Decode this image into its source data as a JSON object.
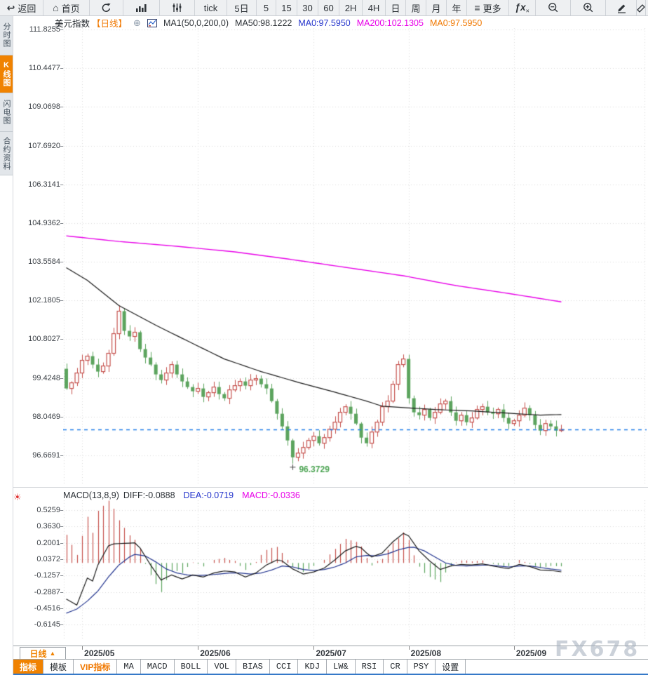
{
  "toolbar": {
    "items": [
      {
        "name": "back",
        "icon": "back-arrow-icon",
        "label": "返回",
        "w": 62
      },
      {
        "name": "home",
        "icon": "home-icon",
        "label": "首页",
        "w": 66
      },
      {
        "name": "refresh",
        "icon": "refresh-icon",
        "label": "",
        "w": 48
      },
      {
        "name": "chart-type",
        "icon": "bar-chart-icon",
        "label": "",
        "w": 52
      },
      {
        "name": "indicator-adjust",
        "icon": "equalizer-icon",
        "label": "",
        "w": 50
      },
      {
        "name": "tick",
        "icon": "",
        "label": "tick",
        "w": 46
      },
      {
        "name": "period-5d",
        "icon": "",
        "label": "5日",
        "w": 42
      },
      {
        "name": "period-5",
        "icon": "",
        "label": "5",
        "w": 28
      },
      {
        "name": "period-15",
        "icon": "",
        "label": "15",
        "w": 30
      },
      {
        "name": "period-30",
        "icon": "",
        "label": "30",
        "w": 30
      },
      {
        "name": "period-60",
        "icon": "",
        "label": "60",
        "w": 30
      },
      {
        "name": "period-2h",
        "icon": "",
        "label": "2H",
        "w": 33
      },
      {
        "name": "period-4h",
        "icon": "",
        "label": "4H",
        "w": 33
      },
      {
        "name": "period-day",
        "icon": "",
        "label": "日",
        "w": 29
      },
      {
        "name": "period-week",
        "icon": "",
        "label": "周",
        "w": 29
      },
      {
        "name": "period-month",
        "icon": "",
        "label": "月",
        "w": 29
      },
      {
        "name": "period-year",
        "icon": "",
        "label": "年",
        "w": 29
      },
      {
        "name": "more",
        "icon": "menu-icon",
        "label": "更多",
        "w": 60
      },
      {
        "name": "fx",
        "icon": "fx-icon",
        "label": "",
        "w": 38
      },
      {
        "name": "zoom-out",
        "icon": "zoom-out-icon",
        "label": "",
        "w": 50
      },
      {
        "name": "zoom-in",
        "icon": "zoom-in-icon",
        "label": "",
        "w": 50
      },
      {
        "name": "draw",
        "icon": "pencil-icon",
        "label": "",
        "w": 44
      },
      {
        "name": "edge-partial",
        "icon": "partial-icon",
        "label": "",
        "w": 13
      }
    ]
  },
  "sidebar": {
    "tabs": [
      {
        "name": "time-share",
        "label": "分时图",
        "active": false,
        "h": 57
      },
      {
        "name": "kline",
        "label": "K线图",
        "active": true,
        "h": 54
      },
      {
        "name": "lightning",
        "label": "闪电图",
        "active": false,
        "h": 55
      },
      {
        "name": "contract-info",
        "label": "合约资料",
        "active": false,
        "h": 62
      }
    ]
  },
  "chart_header": {
    "symbol": "美元指数",
    "period_tag": "【日线】",
    "ma_label": "MA1(50,0,200,0)",
    "ma50": "MA50:98.1222",
    "ma0_blue": "MA0:97.5950",
    "ma200": "MA200:102.1305",
    "ma0_orange": "MA0:97.5950"
  },
  "macd_header": {
    "title": "MACD(13,8,9)",
    "diff": "DIFF:-0.0888",
    "dea": "DEA:-0.0719",
    "macd": "MACD:-0.0336"
  },
  "footer": {
    "period_label": "日线",
    "period_arrow": "▲",
    "tabs": [
      {
        "name": "indicators",
        "label": "指标",
        "state": "active",
        "mono": false
      },
      {
        "name": "templates",
        "label": "模板",
        "state": "",
        "mono": false
      },
      {
        "name": "vip-indicators",
        "label": "VIP指标",
        "state": "vip",
        "mono": false
      },
      {
        "name": "ma",
        "label": "MA",
        "state": "",
        "mono": true
      },
      {
        "name": "macd",
        "label": "MACD",
        "state": "",
        "mono": true
      },
      {
        "name": "boll",
        "label": "BOLL",
        "state": "",
        "mono": true
      },
      {
        "name": "vol",
        "label": "VOL",
        "state": "",
        "mono": true
      },
      {
        "name": "bias",
        "label": "BIAS",
        "state": "",
        "mono": true
      },
      {
        "name": "cci",
        "label": "CCI",
        "state": "",
        "mono": true
      },
      {
        "name": "kdj",
        "label": "KDJ",
        "state": "",
        "mono": true
      },
      {
        "name": "lw",
        "label": "LW&",
        "state": "",
        "mono": true
      },
      {
        "name": "rsi",
        "label": "RSI",
        "state": "",
        "mono": true
      },
      {
        "name": "cr",
        "label": "CR",
        "state": "",
        "mono": true
      },
      {
        "name": "psy",
        "label": "PSY",
        "state": "",
        "mono": true
      },
      {
        "name": "settings",
        "label": "设置",
        "state": "",
        "mono": false
      }
    ]
  },
  "watermark": "FX678",
  "chart_data": {
    "type": "candlestick",
    "title": "美元指数 日线",
    "price_axis_ticks": [
      "111.8255",
      "110.4477",
      "109.0698",
      "107.6920",
      "106.3141",
      "104.9362",
      "103.5584",
      "102.1805",
      "100.8027",
      "99.4248",
      "98.0469",
      "96.6691"
    ],
    "macd_axis_ticks": [
      "0.5259",
      "0.3630",
      "0.2001",
      "0.0372",
      "-0.1257",
      "-0.2887",
      "-0.4516",
      "-0.6145"
    ],
    "x_ticks": [
      {
        "label": "2025/05",
        "index": 3
      },
      {
        "label": "2025/06",
        "index": 25
      },
      {
        "label": "2025/07",
        "index": 47
      },
      {
        "label": "2025/08",
        "index": 65
      },
      {
        "label": "2025/09",
        "index": 85
      }
    ],
    "first_open": 99.75,
    "closes": [
      99.05,
      99.25,
      99.6,
      100.05,
      100.2,
      99.9,
      99.65,
      99.85,
      100.3,
      101.0,
      101.8,
      101.1,
      100.9,
      101.05,
      100.45,
      100.15,
      99.9,
      99.55,
      99.35,
      99.6,
      99.9,
      99.55,
      99.3,
      99.1,
      98.95,
      99.05,
      98.75,
      98.9,
      99.1,
      98.85,
      98.7,
      99.0,
      99.15,
      99.3,
      99.15,
      99.35,
      99.4,
      99.2,
      99.05,
      98.6,
      98.15,
      97.7,
      97.2,
      96.6,
      96.75,
      96.95,
      97.2,
      97.35,
      97.1,
      97.3,
      97.6,
      97.85,
      98.2,
      98.4,
      98.15,
      97.8,
      97.3,
      97.1,
      97.5,
      97.85,
      98.4,
      98.6,
      99.2,
      99.9,
      100.1,
      98.7,
      98.2,
      98.1,
      98.3,
      98.0,
      98.2,
      98.5,
      98.6,
      98.2,
      97.9,
      98.1,
      97.85,
      98.0,
      98.3,
      98.4,
      98.2,
      98.15,
      98.3,
      98.0,
      97.8,
      97.9,
      98.1,
      98.35,
      98.1,
      97.75,
      97.55,
      97.8,
      97.7,
      97.55,
      97.595
    ],
    "overrides": {
      "10": {
        "high": 102.0
      },
      "43": {
        "low": 96.3729
      },
      "64": {
        "high": 100.26
      }
    },
    "last_price": 97.595,
    "low_annotation": {
      "value": "96.3729",
      "index": 43
    },
    "ma50_keypoints": [
      [
        0,
        103.35
      ],
      [
        4,
        102.9
      ],
      [
        10,
        102.0
      ],
      [
        17,
        101.3
      ],
      [
        24,
        100.65
      ],
      [
        30,
        100.1
      ],
      [
        37,
        99.65
      ],
      [
        44,
        99.27
      ],
      [
        50,
        98.97
      ],
      [
        57,
        98.6
      ],
      [
        60,
        98.42
      ],
      [
        64,
        98.37
      ],
      [
        70,
        98.3
      ],
      [
        77,
        98.25
      ],
      [
        84,
        98.17
      ],
      [
        90,
        98.1
      ],
      [
        94,
        98.1222
      ]
    ],
    "ma200_keypoints": [
      [
        0,
        104.48
      ],
      [
        10,
        104.28
      ],
      [
        21,
        104.11
      ],
      [
        32,
        103.91
      ],
      [
        42,
        103.66
      ],
      [
        53,
        103.36
      ],
      [
        64,
        103.06
      ],
      [
        74,
        102.71
      ],
      [
        84,
        102.43
      ],
      [
        94,
        102.1305
      ]
    ],
    "diff_keypoints": [
      [
        0,
        -0.36
      ],
      [
        2,
        -0.42
      ],
      [
        4,
        -0.15
      ],
      [
        5,
        -0.18
      ],
      [
        6,
        -0.02
      ],
      [
        8,
        0.17
      ],
      [
        9,
        0.19
      ],
      [
        13,
        0.2
      ],
      [
        14,
        0.15
      ],
      [
        16,
        -0.02
      ],
      [
        18,
        -0.17
      ],
      [
        20,
        -0.12
      ],
      [
        22,
        -0.16
      ],
      [
        24,
        -0.12
      ],
      [
        26,
        -0.14
      ],
      [
        28,
        -0.1
      ],
      [
        30,
        -0.08
      ],
      [
        32,
        -0.09
      ],
      [
        34,
        -0.14
      ],
      [
        36,
        -0.1
      ],
      [
        38,
        -0.02
      ],
      [
        40,
        0.03
      ],
      [
        41,
        0.02
      ],
      [
        43,
        -0.06
      ],
      [
        45,
        -0.11
      ],
      [
        47,
        -0.09
      ],
      [
        49,
        -0.05
      ],
      [
        51,
        0.03
      ],
      [
        53,
        0.12
      ],
      [
        55,
        0.165
      ],
      [
        56,
        0.15
      ],
      [
        57,
        0.1
      ],
      [
        58,
        0.06
      ],
      [
        60,
        0.1
      ],
      [
        62,
        0.21
      ],
      [
        64,
        0.295
      ],
      [
        65,
        0.27
      ],
      [
        67,
        0.12
      ],
      [
        69,
        0.02
      ],
      [
        71,
        -0.065
      ],
      [
        73,
        -0.03
      ],
      [
        75,
        -0.015
      ],
      [
        77,
        -0.02
      ],
      [
        79,
        -0.01
      ],
      [
        81,
        -0.03
      ],
      [
        83,
        -0.05
      ],
      [
        84,
        -0.055
      ],
      [
        86,
        -0.015
      ],
      [
        88,
        -0.035
      ],
      [
        90,
        -0.07
      ],
      [
        92,
        -0.075
      ],
      [
        94,
        -0.0888
      ]
    ],
    "dea_keypoints": [
      [
        0,
        -0.5
      ],
      [
        2,
        -0.46
      ],
      [
        4,
        -0.38
      ],
      [
        6,
        -0.28
      ],
      [
        8,
        -0.14
      ],
      [
        10,
        -0.02
      ],
      [
        12,
        0.06
      ],
      [
        13,
        0.085
      ],
      [
        15,
        0.07
      ],
      [
        17,
        0.01
      ],
      [
        19,
        -0.06
      ],
      [
        21,
        -0.1
      ],
      [
        23,
        -0.12
      ],
      [
        25,
        -0.125
      ],
      [
        27,
        -0.12
      ],
      [
        29,
        -0.11
      ],
      [
        31,
        -0.1
      ],
      [
        33,
        -0.1
      ],
      [
        35,
        -0.11
      ],
      [
        37,
        -0.1
      ],
      [
        39,
        -0.07
      ],
      [
        41,
        -0.03
      ],
      [
        43,
        -0.04
      ],
      [
        45,
        -0.065
      ],
      [
        47,
        -0.075
      ],
      [
        49,
        -0.065
      ],
      [
        51,
        -0.04
      ],
      [
        53,
        0.0
      ],
      [
        55,
        0.06
      ],
      [
        57,
        0.075
      ],
      [
        59,
        0.07
      ],
      [
        61,
        0.09
      ],
      [
        63,
        0.13
      ],
      [
        65,
        0.155
      ],
      [
        66,
        0.157
      ],
      [
        68,
        0.12
      ],
      [
        70,
        0.06
      ],
      [
        72,
        0.0
      ],
      [
        74,
        -0.025
      ],
      [
        76,
        -0.03
      ],
      [
        78,
        -0.025
      ],
      [
        80,
        -0.02
      ],
      [
        82,
        -0.03
      ],
      [
        84,
        -0.04
      ],
      [
        86,
        -0.03
      ],
      [
        88,
        -0.03
      ],
      [
        90,
        -0.045
      ],
      [
        92,
        -0.06
      ],
      [
        94,
        -0.0719
      ]
    ],
    "colors": {
      "up": "#c5504c",
      "down": "#5ca45e",
      "ma50": "#1a1a1a",
      "ma200": "#e800e8",
      "diff": "#1a1a1a",
      "dea": "#22348f",
      "price_line": "#1e7ce8",
      "grid": "#dadada",
      "low_label": "#4aa351"
    }
  }
}
